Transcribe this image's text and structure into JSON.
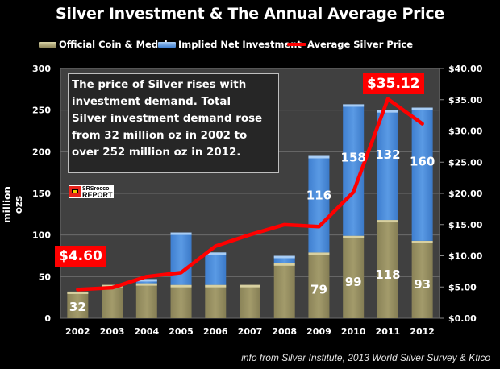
{
  "chart_data": {
    "type": "bar",
    "stacked": true,
    "title": "Silver Investment & The Annual Average Price",
    "xlabel": "",
    "ylabel": "million ozs",
    "y2label": "",
    "categories": [
      "2002",
      "2003",
      "2004",
      "2005",
      "2006",
      "2007",
      "2008",
      "2009",
      "2010",
      "2011",
      "2012"
    ],
    "series": [
      {
        "name": "Official Coin & Medal",
        "type": "bar",
        "axis": "left",
        "color": "#9b9466",
        "values": [
          32,
          40,
          42,
          40,
          40,
          40,
          66,
          79,
          99,
          118,
          93
        ],
        "labels": [
          "32",
          "",
          "",
          "",
          "",
          "",
          "",
          "79",
          "99",
          "118",
          "93"
        ]
      },
      {
        "name": "Implied Net Investment",
        "type": "bar",
        "axis": "left",
        "color": "#4f8fdc",
        "values": [
          0,
          0,
          5,
          63,
          39,
          0,
          9,
          116,
          158,
          132,
          160
        ],
        "labels": [
          "",
          "",
          "",
          "",
          "",
          "",
          "",
          "116",
          "158",
          "132",
          "160"
        ]
      },
      {
        "name": "Average Silver Price",
        "type": "line",
        "axis": "right",
        "color": "#ff0000",
        "values": [
          4.6,
          4.88,
          6.67,
          7.31,
          11.55,
          13.38,
          14.99,
          14.67,
          20.19,
          35.12,
          31.15
        ]
      }
    ],
    "ylim": [
      0,
      300
    ],
    "yticks": [
      "0",
      "50",
      "100",
      "150",
      "200",
      "250",
      "300"
    ],
    "y2lim": [
      0,
      40
    ],
    "y2ticks": [
      "$0.00",
      "$5.00",
      "$10.00",
      "$15.00",
      "$20.00",
      "$25.00",
      "$30.00",
      "$35.00",
      "$40.00"
    ],
    "grid": true,
    "legend": "top",
    "annotations": {
      "price_first": "$4.60",
      "price_peak": "$35.12",
      "note": "The price of Silver rises with investment demand.  Total Silver investment demand rose from 32 million oz in 2002 to over 252 million oz in 2012."
    }
  },
  "title": "Silver Investment & The Annual Average Price",
  "legend": {
    "coin": "Official Coin & Medal",
    "net": "Implied Net Investment",
    "price": "Average Silver Price"
  },
  "ylabel": "million ozs",
  "annotation_lines": [
    "The price of Silver rises with",
    "investment demand.  Total",
    "Silver investment demand rose",
    "from 32 million oz in 2002 to",
    "over 252 million oz in 2012."
  ],
  "logo": {
    "line1": "SRSrocco",
    "line2": "REPORT"
  },
  "price_labels": {
    "first": "$4.60",
    "peak": "$35.12"
  },
  "source": "info from Silver Institute, 2013 World Silver Survey & Ktico",
  "colors": {
    "coin": "#9b9466",
    "net": "#4f8fdc",
    "price": "#ff0000",
    "plot_bg": "#404040",
    "grid": "#6b6b6b"
  }
}
